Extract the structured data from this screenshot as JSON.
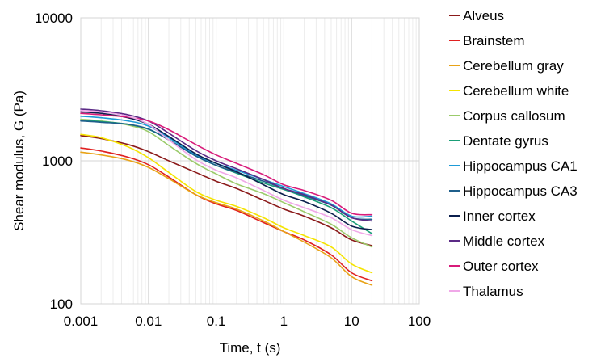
{
  "chart_data": {
    "type": "line",
    "x_scale": "log",
    "y_scale": "log",
    "xlim": [
      0.001,
      100
    ],
    "ylim": [
      100,
      10000
    ],
    "xlabel": "Time, t (s)",
    "ylabel": "Shear modulus, G (Pa)",
    "x_ticks": [
      {
        "value": 0.001,
        "label": "0.001"
      },
      {
        "value": 0.01,
        "label": "0.01"
      },
      {
        "value": 0.1,
        "label": "0.1"
      },
      {
        "value": 1,
        "label": "1"
      },
      {
        "value": 10,
        "label": "10"
      },
      {
        "value": 100,
        "label": "100"
      }
    ],
    "y_ticks": [
      {
        "value": 100,
        "label": "100"
      },
      {
        "value": 1000,
        "label": "1000"
      },
      {
        "value": 10000,
        "label": "10000"
      }
    ],
    "grid": true,
    "legend_position": "right",
    "x": [
      0.001,
      0.002,
      0.005,
      0.01,
      0.02,
      0.05,
      0.1,
      0.2,
      0.5,
      1,
      2,
      5,
      10,
      20
    ],
    "series": [
      {
        "name": "Alveus",
        "color": "#8B1A1A",
        "values": [
          1500,
          1430,
          1300,
          1160,
          1000,
          830,
          720,
          640,
          530,
          460,
          410,
          340,
          280,
          255
        ]
      },
      {
        "name": "Brainstem",
        "color": "#E02020",
        "values": [
          1230,
          1170,
          1060,
          940,
          770,
          580,
          500,
          450,
          370,
          320,
          280,
          220,
          165,
          145
        ]
      },
      {
        "name": "Cerebellum gray",
        "color": "#E8A317",
        "values": [
          1150,
          1100,
          1010,
          900,
          750,
          580,
          510,
          460,
          380,
          320,
          270,
          210,
          155,
          135
        ]
      },
      {
        "name": "Cerebellum white",
        "color": "#F5E400",
        "values": [
          1530,
          1450,
          1250,
          1050,
          830,
          610,
          530,
          480,
          400,
          340,
          300,
          250,
          190,
          165
        ]
      },
      {
        "name": "Corpus callosum",
        "color": "#9BCB6B",
        "values": [
          1950,
          1900,
          1780,
          1600,
          1280,
          960,
          810,
          690,
          590,
          510,
          440,
          360,
          290,
          250
        ]
      },
      {
        "name": "Dentate gyrus",
        "color": "#1A9E77",
        "values": [
          1920,
          1880,
          1800,
          1660,
          1400,
          1080,
          930,
          820,
          700,
          630,
          560,
          470,
          380,
          310
        ]
      },
      {
        "name": "Hippocampus CA1",
        "color": "#1E9BD7",
        "values": [
          2050,
          2000,
          1900,
          1750,
          1450,
          1100,
          960,
          860,
          740,
          660,
          590,
          500,
          410,
          410
        ]
      },
      {
        "name": "Hippocampus CA3",
        "color": "#1F5F8B",
        "values": [
          1900,
          1860,
          1800,
          1670,
          1400,
          1080,
          930,
          830,
          720,
          640,
          570,
          490,
          400,
          390
        ]
      },
      {
        "name": "Inner cortex",
        "color": "#0B1F4D",
        "values": [
          2200,
          2150,
          2000,
          1800,
          1480,
          1120,
          960,
          840,
          680,
          580,
          520,
          430,
          350,
          330
        ]
      },
      {
        "name": "Middle cortex",
        "color": "#5B2A86",
        "values": [
          2300,
          2240,
          2100,
          1900,
          1560,
          1180,
          1000,
          880,
          740,
          640,
          580,
          490,
          400,
          380
        ]
      },
      {
        "name": "Outer cortex",
        "color": "#D81B7A",
        "values": [
          2150,
          2100,
          2020,
          1900,
          1650,
          1300,
          1100,
          960,
          800,
          680,
          620,
          530,
          430,
          420
        ]
      },
      {
        "name": "Thalamus",
        "color": "#F0A8E8",
        "values": [
          2250,
          2200,
          2050,
          1800,
          1400,
          1020,
          860,
          760,
          620,
          530,
          470,
          400,
          330,
          300
        ]
      }
    ]
  }
}
